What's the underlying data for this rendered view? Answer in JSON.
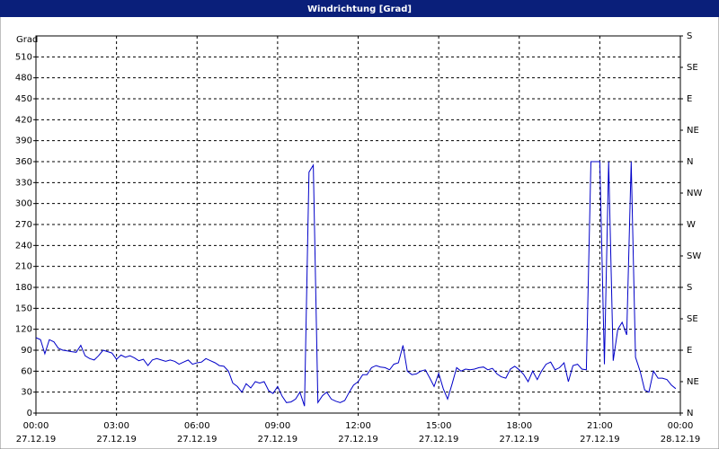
{
  "chart_data": {
    "type": "line",
    "title": "Windrichtung [Grad]",
    "y_label": "Grad",
    "color": "#0000c8",
    "grid": true,
    "xlim": [
      0,
      24
    ],
    "xticks": [
      {
        "value": 0,
        "label": "00:00"
      },
      {
        "value": 3,
        "label": "03:00"
      },
      {
        "value": 6,
        "label": "06:00"
      },
      {
        "value": 9,
        "label": "09:00"
      },
      {
        "value": 12,
        "label": "12:00"
      },
      {
        "value": 15,
        "label": "15:00"
      },
      {
        "value": 18,
        "label": "18:00"
      },
      {
        "value": 21,
        "label": "21:00"
      },
      {
        "value": 24,
        "label": "00:00"
      }
    ],
    "x_dates": [
      "27.12.19",
      "27.12.19",
      "27.12.19",
      "27.12.19",
      "27.12.19",
      "27.12.19",
      "27.12.19",
      "27.12.19",
      "28.12.19"
    ],
    "ylim": [
      0,
      540
    ],
    "yticks": [
      0,
      30,
      60,
      90,
      120,
      150,
      180,
      210,
      240,
      270,
      300,
      330,
      360,
      390,
      420,
      450,
      480,
      510
    ],
    "y2lim": [
      0,
      540
    ],
    "y2ticks": [
      {
        "value": 0,
        "label": "N"
      },
      {
        "value": 45,
        "label": "NE"
      },
      {
        "value": 90,
        "label": "E"
      },
      {
        "value": 135,
        "label": "SE"
      },
      {
        "value": 180,
        "label": "S"
      },
      {
        "value": 225,
        "label": "SW"
      },
      {
        "value": 270,
        "label": "W"
      },
      {
        "value": 315,
        "label": "NW"
      },
      {
        "value": 360,
        "label": "N"
      },
      {
        "value": 405,
        "label": "NE"
      },
      {
        "value": 450,
        "label": "E"
      },
      {
        "value": 495,
        "label": "SE"
      },
      {
        "value": 540,
        "label": "S"
      }
    ],
    "x": [
      0,
      0.17,
      0.33,
      0.5,
      0.67,
      0.83,
      1,
      1.17,
      1.33,
      1.5,
      1.67,
      1.83,
      2,
      2.17,
      2.33,
      2.5,
      2.67,
      2.83,
      3,
      3.17,
      3.33,
      3.5,
      3.67,
      3.83,
      4,
      4.17,
      4.33,
      4.5,
      4.67,
      4.83,
      5,
      5.17,
      5.33,
      5.5,
      5.67,
      5.83,
      6,
      6.17,
      6.33,
      6.5,
      6.67,
      6.83,
      7,
      7.17,
      7.33,
      7.5,
      7.67,
      7.83,
      8,
      8.17,
      8.33,
      8.5,
      8.67,
      8.83,
      9,
      9.17,
      9.33,
      9.5,
      9.67,
      9.83,
      10,
      10.17,
      10.33,
      10.5,
      10.67,
      10.83,
      11,
      11.17,
      11.33,
      11.5,
      11.67,
      11.83,
      12,
      12.17,
      12.33,
      12.5,
      12.67,
      12.83,
      13,
      13.17,
      13.33,
      13.5,
      13.67,
      13.83,
      14,
      14.17,
      14.33,
      14.5,
      14.67,
      14.83,
      15,
      15.17,
      15.33,
      15.5,
      15.67,
      15.83,
      16,
      16.17,
      16.33,
      16.5,
      16.67,
      16.83,
      17,
      17.17,
      17.33,
      17.5,
      17.67,
      17.83,
      18,
      18.17,
      18.33,
      18.5,
      18.67,
      18.83,
      19,
      19.17,
      19.33,
      19.5,
      19.67,
      19.83,
      20,
      20.17,
      20.33,
      20.5,
      20.67,
      20.83,
      21,
      21.17,
      21.33,
      21.5,
      21.67,
      21.83,
      22,
      22.17,
      22.33,
      22.5,
      22.67,
      22.83,
      23,
      23.17,
      23.33,
      23.5,
      23.67,
      23.83
    ],
    "values": [
      108,
      105,
      85,
      105,
      102,
      93,
      90,
      89,
      88,
      87,
      97,
      82,
      78,
      76,
      82,
      90,
      88,
      86,
      77,
      83,
      80,
      82,
      79,
      75,
      77,
      68,
      76,
      78,
      76,
      74,
      76,
      74,
      70,
      73,
      76,
      70,
      72,
      73,
      78,
      75,
      72,
      68,
      67,
      60,
      43,
      38,
      30,
      42,
      36,
      45,
      43,
      45,
      32,
      28,
      38,
      24,
      15,
      16,
      20,
      30,
      10,
      345,
      355,
      15,
      25,
      30,
      20,
      17,
      15,
      18,
      30,
      40,
      45,
      55,
      55,
      65,
      68,
      66,
      65,
      62,
      70,
      72,
      97,
      60,
      55,
      56,
      60,
      62,
      50,
      38,
      57,
      35,
      20,
      42,
      65,
      60,
      63,
      62,
      63,
      65,
      66,
      62,
      64,
      56,
      52,
      50,
      63,
      67,
      62,
      55,
      45,
      60,
      48,
      60,
      70,
      73,
      62,
      65,
      72,
      45,
      68,
      70,
      63,
      62,
      360,
      360,
      360,
      70,
      360,
      75,
      120,
      130,
      112,
      360,
      80,
      60,
      33,
      30,
      60,
      50,
      50,
      48,
      40,
      35
    ]
  }
}
